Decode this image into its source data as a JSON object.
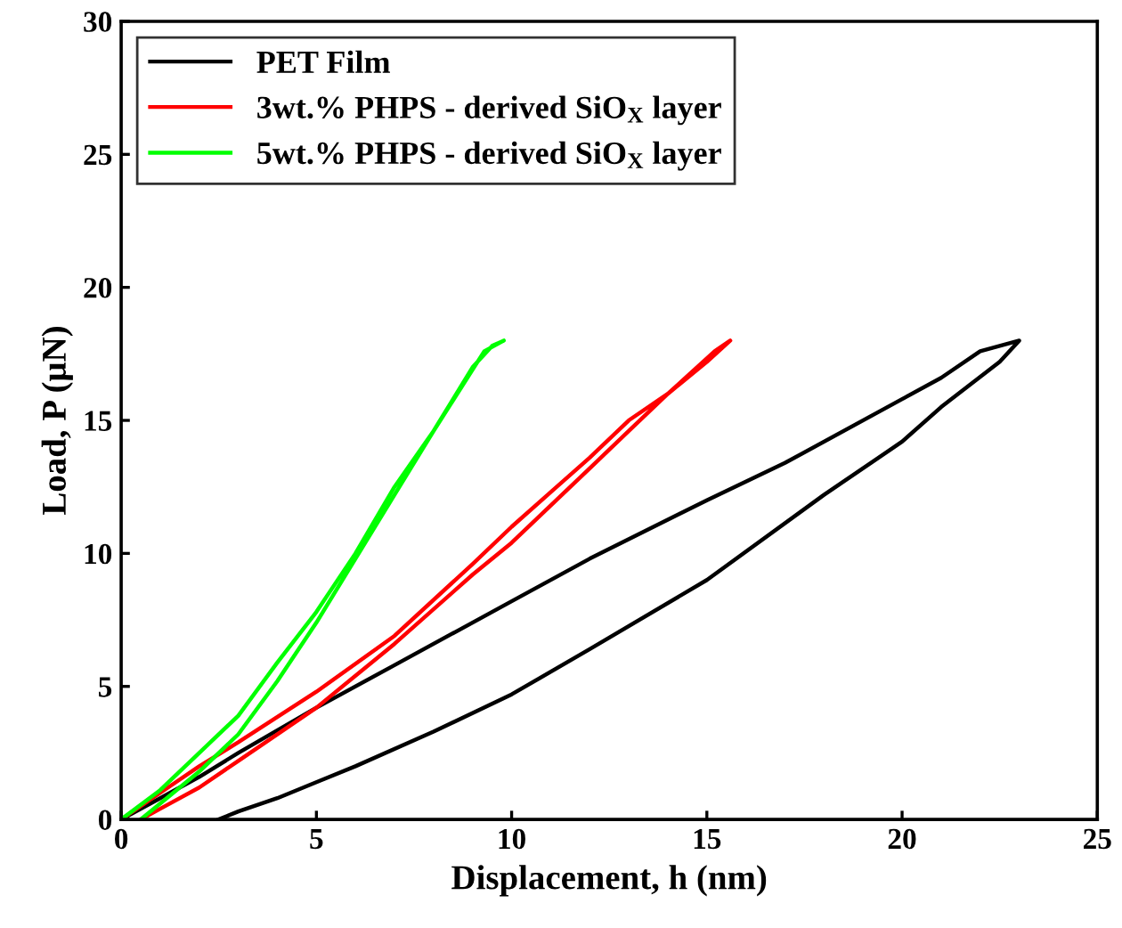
{
  "chart_data": {
    "type": "line",
    "xlabel": "Displacement, h (nm)",
    "ylabel": "Load, P (μN)",
    "xlim": [
      0,
      25
    ],
    "ylim": [
      0,
      30
    ],
    "xticks": [
      0,
      5,
      10,
      15,
      20,
      25
    ],
    "yticks": [
      0,
      5,
      10,
      15,
      20,
      25,
      30
    ],
    "grid": false,
    "legend": "top left",
    "marker": "none",
    "line_style": "solid",
    "series": [
      {
        "name": "PET Film",
        "color": "#000000",
        "x": [
          0,
          1,
          2,
          3,
          5,
          7,
          10,
          12,
          15,
          17,
          20,
          21,
          22,
          23,
          22.5,
          21,
          20,
          18,
          15,
          12,
          10,
          8,
          6,
          5,
          4,
          3,
          2.5
        ],
        "values": [
          0,
          0.8,
          1.6,
          2.5,
          4.2,
          5.8,
          8.2,
          9.8,
          12,
          13.4,
          15.8,
          16.6,
          17.6,
          18,
          17.2,
          15.5,
          14.2,
          12.2,
          9,
          6.4,
          4.7,
          3.3,
          2,
          1.4,
          0.8,
          0.3,
          0
        ]
      },
      {
        "name": "3wt.% PHPS - derived SiO$_{X}$ layer",
        "color": "#ff0000",
        "x": [
          0,
          1,
          2,
          3,
          5,
          7,
          9,
          10,
          11,
          12,
          13,
          14,
          15,
          15.6,
          15.2,
          14,
          13,
          12,
          11,
          10,
          9,
          7,
          5,
          3,
          2,
          1,
          0.5
        ],
        "values": [
          0,
          1,
          2,
          2.9,
          4.8,
          6.9,
          9.6,
          11,
          12.3,
          13.6,
          15,
          16,
          17.2,
          18,
          17.6,
          16,
          14.6,
          13.2,
          11.8,
          10.4,
          9.2,
          6.6,
          4.2,
          2.2,
          1.2,
          0.4,
          0
        ]
      },
      {
        "name": "5wt.% PHPS - derived SiO$_{X}$ layer",
        "color": "#00ff00",
        "x": [
          0,
          1,
          2,
          3,
          4,
          5,
          6,
          7,
          8,
          9,
          9.5,
          9.8,
          9.3,
          8,
          7,
          6,
          5,
          4,
          3,
          2,
          1,
          0.5
        ],
        "values": [
          0,
          1.1,
          2.5,
          3.9,
          5.9,
          7.8,
          10,
          12.5,
          14.6,
          17,
          17.8,
          18,
          17.6,
          14.6,
          12.2,
          9.8,
          7.4,
          5.2,
          3.2,
          1.8,
          0.6,
          0
        ]
      }
    ]
  }
}
